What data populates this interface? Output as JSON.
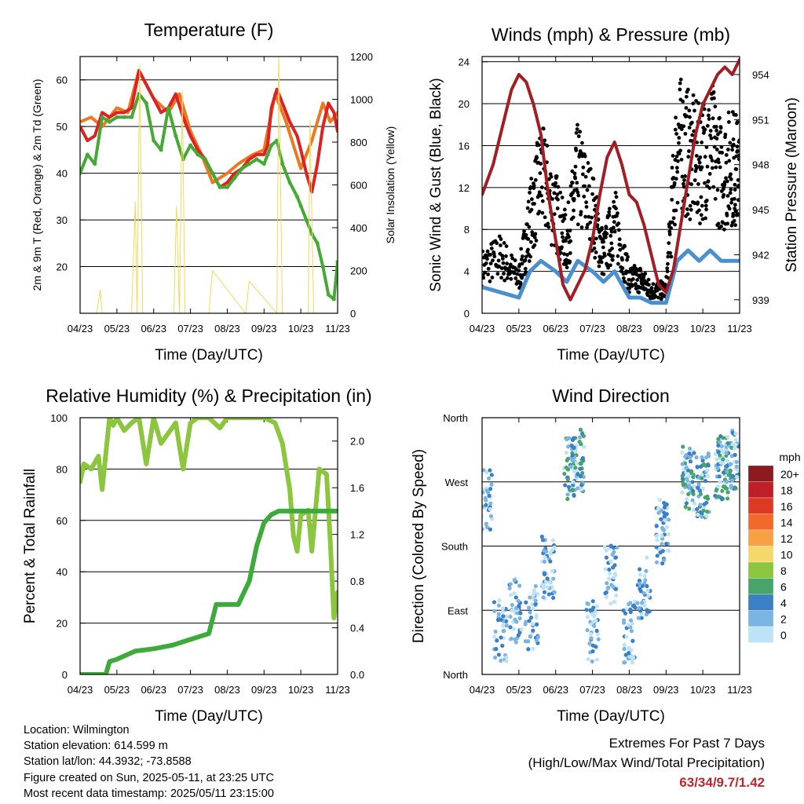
{
  "chart_data": [
    {
      "id": "temperature",
      "type": "line",
      "title": "Temperature (F)",
      "xlabel": "Time (Day/UTC)",
      "ylabel": "2m & 9m T (Red, Orange) & 2m Td (Green)",
      "y2label": "Solar Insolation (Yellow)",
      "x_ticks": [
        "04/23",
        "05/23",
        "06/23",
        "07/23",
        "08/23",
        "09/23",
        "10/23",
        "11/23"
      ],
      "ylim": [
        10,
        65
      ],
      "y_ticks": [
        20,
        30,
        40,
        50,
        60
      ],
      "y2lim": [
        0,
        1200
      ],
      "y2_ticks": [
        0,
        200,
        400,
        600,
        800,
        1000,
        1200
      ],
      "grid": true,
      "series": [
        {
          "color": "#ee7722",
          "x": [
            0,
            0.3,
            0.6,
            1,
            1.3,
            1.6,
            2,
            2.4,
            2.7,
            3,
            3.3,
            3.6,
            4,
            4.3,
            4.7,
            5,
            5.3,
            5.6,
            6,
            6.3,
            6.6,
            6.8,
            7
          ],
          "values": [
            51,
            52,
            50,
            54,
            53,
            62,
            56,
            53,
            57,
            49,
            44,
            38,
            40,
            42,
            44,
            45,
            57,
            51,
            41,
            47,
            55,
            51,
            53
          ]
        },
        {
          "color": "#dd2222",
          "x": [
            0,
            0.2,
            0.4,
            0.6,
            0.8,
            1,
            1.2,
            1.4,
            1.6,
            1.8,
            2,
            2.2,
            2.4,
            2.6,
            2.8,
            3,
            3.2,
            3.4,
            3.6,
            3.8,
            4,
            4.2,
            4.4,
            4.6,
            4.8,
            5,
            5.1,
            5.2,
            5.35,
            5.5,
            5.7,
            5.9,
            6,
            6.15,
            6.3,
            6.45,
            6.6,
            6.75,
            6.9,
            7
          ],
          "values": [
            50,
            47,
            48,
            53,
            52,
            53,
            53,
            54,
            62,
            59,
            56,
            53,
            54,
            57,
            52,
            48,
            45,
            43,
            40,
            37,
            38,
            40,
            41,
            43,
            44,
            44,
            46,
            54,
            58,
            55,
            51,
            48,
            45,
            40,
            36,
            42,
            50,
            55,
            53,
            49
          ]
        },
        {
          "color": "#44aa33",
          "x": [
            0,
            0.2,
            0.4,
            0.6,
            0.8,
            1,
            1.2,
            1.4,
            1.6,
            1.8,
            2,
            2.2,
            2.4,
            2.6,
            2.8,
            3,
            3.2,
            3.4,
            3.6,
            3.8,
            4,
            4.2,
            4.4,
            4.6,
            4.8,
            5,
            5.1,
            5.2,
            5.35,
            5.5,
            5.7,
            5.9,
            6,
            6.15,
            6.3,
            6.45,
            6.6,
            6.75,
            6.9,
            7
          ],
          "values": [
            40,
            44,
            42,
            52,
            51,
            52,
            52,
            52,
            57,
            55,
            47,
            45,
            54,
            48,
            43,
            46,
            44,
            43,
            40,
            37,
            37,
            39,
            41,
            42,
            43,
            42,
            44,
            46,
            47,
            42,
            38,
            35,
            33,
            30,
            27,
            25,
            20,
            14,
            13,
            21
          ]
        },
        {
          "color": "#f1d85a",
          "axis": "y2",
          "x": [
            0.45,
            0.55,
            0.6,
            0.7,
            1.4,
            1.5,
            1.55,
            1.62,
            1.7,
            2.55,
            2.62,
            2.7,
            2.78,
            2.85,
            3.5,
            3.6,
            4.5,
            4.6,
            5.35,
            5.4,
            5.5,
            6.2,
            6.25,
            6.35,
            7
          ],
          "values": [
            0,
            110,
            0,
            0,
            0,
            520,
            0,
            1160,
            0,
            0,
            500,
            0,
            1040,
            0,
            0,
            200,
            0,
            150,
            0,
            1200,
            0,
            0,
            900,
            0,
            0
          ]
        }
      ]
    },
    {
      "id": "winds",
      "type": "scatter",
      "title": "Winds (mph) & Pressure (mb)",
      "xlabel": "Time (Day/UTC)",
      "ylabel": "Sonic Wind & Gust (Blue, Black)",
      "y2label": "Station Pressure (Maroon)",
      "x_ticks": [
        "04/23",
        "05/23",
        "06/23",
        "07/23",
        "08/23",
        "09/23",
        "10/23",
        "11/23"
      ],
      "ylim": [
        0,
        24.5
      ],
      "y_ticks": [
        0,
        4,
        8,
        12,
        16,
        20,
        24
      ],
      "y2lim": [
        938.1,
        955.2
      ],
      "y2_ticks": [
        939,
        942,
        945,
        948,
        951,
        954
      ],
      "grid": true,
      "series": [
        {
          "color": "#000000",
          "marker": "dot",
          "x": [
            0,
            0.5,
            1,
            1.3,
            1.6,
            2,
            2.3,
            2.6,
            3,
            3.3,
            3.6,
            4,
            4.3,
            4.6,
            5,
            5.3,
            5.6,
            5.9,
            6.2,
            6.5,
            6.8,
            7
          ],
          "values": [
            4,
            5,
            3,
            8,
            12,
            9,
            6,
            12,
            9,
            5,
            8,
            3,
            3,
            2,
            2,
            15,
            14,
            13,
            15,
            12,
            13,
            12
          ]
        },
        {
          "color": "#4a90d0",
          "x": [
            0,
            0.5,
            1,
            1.3,
            1.6,
            2,
            2.3,
            2.6,
            3,
            3.3,
            3.6,
            4,
            4.3,
            4.6,
            5,
            5.3,
            5.6,
            5.9,
            6.2,
            6.5,
            6.8,
            7
          ],
          "values": [
            2.5,
            2,
            1.5,
            4,
            5,
            4,
            3,
            5,
            4,
            3,
            4,
            1.5,
            1.5,
            1,
            1,
            5,
            6,
            5,
            6,
            5,
            5,
            5
          ]
        },
        {
          "color": "#a31e24",
          "axis": "y2",
          "x": [
            0,
            0.3,
            0.6,
            0.8,
            1,
            1.2,
            1.4,
            1.6,
            1.8,
            2,
            2.2,
            2.4,
            2.6,
            2.8,
            3,
            3.2,
            3.4,
            3.6,
            3.8,
            4,
            4.2,
            4.4,
            4.6,
            4.8,
            5,
            5.2,
            5.4,
            5.6,
            5.8,
            6,
            6.2,
            6.4,
            6.6,
            6.8,
            7
          ],
          "values": [
            946,
            948,
            951,
            953,
            954,
            953.5,
            952,
            950,
            946,
            943,
            940,
            939,
            940,
            941,
            943,
            946,
            948.5,
            949.5,
            948,
            946,
            945.5,
            944,
            942,
            940,
            939.5,
            941,
            944,
            947,
            950,
            952,
            953,
            954,
            954.5,
            954,
            955
          ]
        }
      ]
    },
    {
      "id": "humidity",
      "type": "line",
      "title": "Relative Humidity (%) & Precipitation (in)",
      "xlabel": "Time (Day/UTC)",
      "ylabel": "Percent & Total Rainfall",
      "x_ticks": [
        "04/23",
        "05/23",
        "06/23",
        "07/23",
        "08/23",
        "09/23",
        "10/23",
        "11/23"
      ],
      "ylim": [
        0,
        100
      ],
      "y_ticks": [
        0,
        20,
        40,
        60,
        80,
        100
      ],
      "y2lim": [
        0,
        2.2
      ],
      "y2_ticks": [
        "0.0",
        "0.4",
        "0.8",
        "1.2",
        "1.6",
        "2.0"
      ],
      "grid": true,
      "series": [
        {
          "color": "#8cc63f",
          "x": [
            0,
            0.1,
            0.3,
            0.5,
            0.6,
            0.8,
            0.9,
            1,
            1.2,
            1.4,
            1.6,
            1.8,
            2,
            2.2,
            2.4,
            2.6,
            2.8,
            3,
            3.2,
            3.5,
            3.8,
            4,
            4.5,
            5,
            5.3,
            5.5,
            5.7,
            5.8,
            5.9,
            6,
            6.2,
            6.3,
            6.5,
            6.7,
            6.8,
            6.9,
            7
          ],
          "values": [
            75,
            82,
            80,
            85,
            72,
            100,
            97,
            100,
            95,
            98,
            100,
            82,
            100,
            90,
            94,
            98,
            80,
            98,
            100,
            100,
            96,
            100,
            100,
            100,
            98,
            90,
            72,
            54,
            48,
            62,
            64,
            48,
            80,
            78,
            52,
            22,
            32
          ]
        },
        {
          "color": "#3faa3c",
          "axis": "y2",
          "x": [
            0,
            0.7,
            0.8,
            1,
            1.5,
            2,
            2.5,
            3,
            3.5,
            3.7,
            4,
            4.3,
            4.6,
            4.8,
            5,
            5.2,
            5.4,
            5.6,
            5.8,
            6,
            6.5,
            7
          ],
          "values": [
            0,
            0,
            0.11,
            0.13,
            0.2,
            0.22,
            0.25,
            0.3,
            0.35,
            0.6,
            0.6,
            0.6,
            0.8,
            1.1,
            1.3,
            1.37,
            1.4,
            1.4,
            1.4,
            1.4,
            1.4,
            1.4
          ]
        }
      ]
    },
    {
      "id": "direction",
      "type": "scatter",
      "title": "Wind Direction",
      "xlabel": "Time (Day/UTC)",
      "ylabel": "Direction (Colored By Speed)",
      "x_ticks": [
        "04/23",
        "05/23",
        "06/23",
        "07/23",
        "08/23",
        "09/23",
        "10/23",
        "11/23"
      ],
      "y_ticks": [
        "North",
        "East",
        "South",
        "West",
        "North"
      ],
      "ylim": [
        0,
        360
      ],
      "grid": true,
      "colorbar": {
        "title": "mph",
        "labels": [
          "20+",
          "18",
          "16",
          "14",
          "12",
          "10",
          "8",
          "6",
          "4",
          "2",
          "0"
        ],
        "colors": [
          "#8c1a1f",
          "#bd2026",
          "#dd3a26",
          "#f2692b",
          "#f7a044",
          "#f4d86a",
          "#8cc63f",
          "#48a56a",
          "#3b7fc4",
          "#7ab4e2",
          "#bfe3f6"
        ]
      },
      "clusters": [
        {
          "x": 0.1,
          "y": 245,
          "n": 40
        },
        {
          "x": 0.5,
          "y": 60,
          "n": 40
        },
        {
          "x": 0.9,
          "y": 90,
          "n": 40
        },
        {
          "x": 1.35,
          "y": 80,
          "n": 40
        },
        {
          "x": 1.8,
          "y": 150,
          "n": 50
        },
        {
          "x": 2.4,
          "y": 290,
          "n": 50
        },
        {
          "x": 2.6,
          "y": 300,
          "n": 40
        },
        {
          "x": 3.0,
          "y": 60,
          "n": 40
        },
        {
          "x": 3.5,
          "y": 140,
          "n": 40
        },
        {
          "x": 4.0,
          "y": 60,
          "n": 40
        },
        {
          "x": 4.4,
          "y": 120,
          "n": 40
        },
        {
          "x": 4.9,
          "y": 200,
          "n": 50
        },
        {
          "x": 5.6,
          "y": 275,
          "n": 60
        },
        {
          "x": 6.0,
          "y": 265,
          "n": 60
        },
        {
          "x": 6.5,
          "y": 290,
          "n": 60
        },
        {
          "x": 6.8,
          "y": 300,
          "n": 60
        }
      ]
    }
  ],
  "info": {
    "location": "Location: Wilmington",
    "elevation": "Station elevation: 614.599 m",
    "latlon": "Station lat/lon: 44.3932; -73.8588",
    "created": "Figure created on Sun, 2025-05-11, at 23:25 UTC",
    "timestamp": "Most recent data timestamp: 2025/05/11 23:15:00"
  },
  "extremes": {
    "line1": "Extremes For Past 7 Days",
    "line2": "(High/Low/Max Wind/Total Precipitation)",
    "values": "63/34/9.7/1.42"
  }
}
